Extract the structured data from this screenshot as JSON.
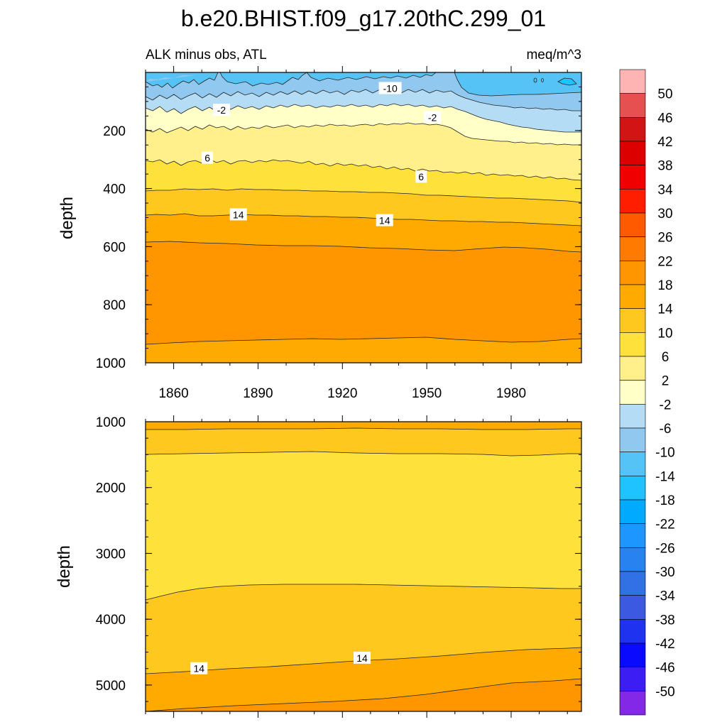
{
  "figure": {
    "title": "b.e20.BHIST.f09_g17.20thC.299_01",
    "subtitle_left": "ALK minus obs, ATL",
    "subtitle_right": "meq/m^3"
  },
  "chart_data": {
    "type": "contour",
    "x_range": [
      1850,
      2005
    ],
    "x_ticks": [
      1860,
      1890,
      1920,
      1950,
      1980
    ],
    "x_tick_labels": [
      "1860",
      "1890",
      "1920",
      "1950",
      "1980"
    ],
    "contour_levels": [
      -50,
      -46,
      -42,
      -38,
      -34,
      -30,
      -26,
      -22,
      -18,
      -14,
      -10,
      -6,
      -2,
      2,
      6,
      10,
      14,
      18,
      22,
      26,
      30,
      34,
      38,
      42,
      46,
      50
    ],
    "colorbar": {
      "labels": [
        "50",
        "46",
        "42",
        "38",
        "34",
        "30",
        "26",
        "22",
        "18",
        "14",
        "10",
        "6",
        "2",
        "-2",
        "-6",
        "-10",
        "-14",
        "-18",
        "-22",
        "-26",
        "-30",
        "-34",
        "-38",
        "-42",
        "-46",
        "-50"
      ],
      "colors_top_to_bottom": [
        "#ffb4b4",
        "#e65050",
        "#d21414",
        "#dc0000",
        "#f00000",
        "#ff1e00",
        "#ff5a00",
        "#ff7a00",
        "#ff9600",
        "#ffaa00",
        "#ffc81e",
        "#ffe13c",
        "#fff08c",
        "#ffffc8",
        "#b4dcf5",
        "#91c8f0",
        "#55c3f5",
        "#1ec3ff",
        "#00aaff",
        "#1e96ff",
        "#2882f0",
        "#3270e6",
        "#3c5ae1",
        "#1e32f0",
        "#0a0aff",
        "#3c1ef5",
        "#8228e6"
      ]
    },
    "panels": [
      {
        "name": "upper",
        "ylabel": "depth",
        "y_range": [
          0,
          1000
        ],
        "y_ticks": [
          200,
          400,
          600,
          800,
          1000
        ],
        "y_tick_labels": [
          "200",
          "400",
          "600",
          "800",
          "1000"
        ],
        "bands_top_to_bottom": [
          {
            "range": "-14 to -10",
            "color": "#55c3f5"
          },
          {
            "range": "-10 to -6",
            "color": "#91c8f0"
          },
          {
            "range": "-6 to -2",
            "color": "#b4dcf5"
          },
          {
            "range": "-2 to 2",
            "color": "#ffffc8"
          },
          {
            "range": "2 to 6",
            "color": "#fff08c"
          },
          {
            "range": "6 to 10",
            "color": "#ffe13c"
          },
          {
            "range": "10 to 14",
            "color": "#ffc81e"
          },
          {
            "range": "14 to 18",
            "color": "#ffaa00"
          },
          {
            "range": "18 to 22",
            "color": "#ff9600"
          },
          {
            "range": "14 to 18",
            "color": "#ffaa00"
          }
        ],
        "contour_labels": [
          {
            "text": "-10",
            "year": 1937,
            "depth": 55
          },
          {
            "text": "-2",
            "year": 1877,
            "depth": 130
          },
          {
            "text": "-2",
            "year": 1952,
            "depth": 155
          },
          {
            "text": "6",
            "year": 1872,
            "depth": 295
          },
          {
            "text": "6",
            "year": 1948,
            "depth": 360
          },
          {
            "text": "14",
            "year": 1883,
            "depth": 490
          },
          {
            "text": "14",
            "year": 1935,
            "depth": 510
          }
        ]
      },
      {
        "name": "lower",
        "ylabel": "depth",
        "y_range": [
          1000,
          5400
        ],
        "y_ticks": [
          1000,
          2000,
          3000,
          4000,
          5000
        ],
        "y_tick_labels": [
          "1000",
          "2000",
          "3000",
          "4000",
          "5000"
        ],
        "bands_top_to_bottom": [
          {
            "range": "14 to 18",
            "color": "#ffaa00"
          },
          {
            "range": "10 to 14",
            "color": "#ffc81e"
          },
          {
            "range": "6 to 10",
            "color": "#ffe13c"
          },
          {
            "range": "10 to 14",
            "color": "#ffc81e"
          },
          {
            "range": "14 to 18",
            "color": "#ffaa00"
          },
          {
            "range": "18 to 22",
            "color": "#ff9600"
          }
        ],
        "contour_labels": [
          {
            "text": "14",
            "year": 1869,
            "depth": 4750
          },
          {
            "text": "14",
            "year": 1927,
            "depth": 4590
          }
        ]
      }
    ]
  }
}
